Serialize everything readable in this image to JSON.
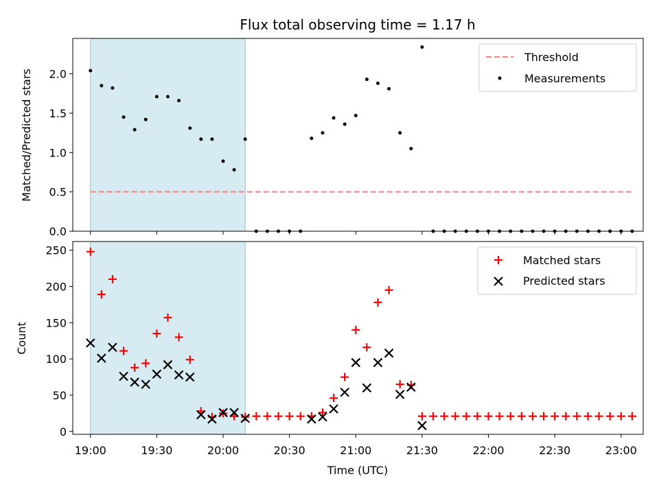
{
  "figure": {
    "title": "Flux total observing time = 1.17 h",
    "xlabel": "Time (UTC)",
    "xticks": [
      "19:00",
      "19:30",
      "20:00",
      "20:30",
      "21:00",
      "21:30",
      "22:00",
      "22:30",
      "23:00"
    ]
  },
  "chart_data": [
    {
      "type": "scatter",
      "ylabel": "Matched/Predicted stars",
      "xlim": [
        "18:52",
        "23:10"
      ],
      "ylim": [
        0,
        2.45
      ],
      "yticks": [
        "0.0",
        "0.5",
        "1.0",
        "1.5",
        "2.0"
      ],
      "shaded_span": [
        "19:00",
        "20:10"
      ],
      "threshold": {
        "name": "Threshold",
        "y": 0.5,
        "x_range": [
          "19:00",
          "23:05"
        ],
        "color": "#ff7f7f"
      },
      "series": [
        {
          "name": "Measurements",
          "color": "#000000",
          "x": [
            "19:00",
            "19:05",
            "19:10",
            "19:15",
            "19:20",
            "19:25",
            "19:30",
            "19:35",
            "19:40",
            "19:45",
            "19:50",
            "19:55",
            "20:00",
            "20:05",
            "20:10",
            "20:15",
            "20:20",
            "20:25",
            "20:30",
            "20:35",
            "20:40",
            "20:45",
            "20:50",
            "20:55",
            "21:00",
            "21:05",
            "21:10",
            "21:15",
            "21:20",
            "21:25",
            "21:30",
            "21:35",
            "21:40",
            "21:45",
            "21:50",
            "21:55",
            "22:00",
            "22:05",
            "22:10",
            "22:15",
            "22:20",
            "22:25",
            "22:30",
            "22:35",
            "22:40",
            "22:45",
            "22:50",
            "22:55",
            "23:00",
            "23:05"
          ],
          "y": [
            2.04,
            1.85,
            1.82,
            1.45,
            1.29,
            1.42,
            1.71,
            1.71,
            1.66,
            1.31,
            1.17,
            1.17,
            0.89,
            0.78,
            1.17,
            0,
            0,
            0,
            0,
            0,
            1.18,
            1.25,
            1.44,
            1.36,
            1.47,
            1.93,
            1.88,
            1.81,
            1.25,
            1.05,
            2.34,
            0,
            0,
            0,
            0,
            0,
            0,
            0,
            0,
            0,
            0,
            0,
            0,
            0,
            0,
            0,
            0,
            0,
            0,
            0
          ]
        }
      ]
    },
    {
      "type": "scatter",
      "ylabel": "Count",
      "xlim": [
        "18:52",
        "23:10"
      ],
      "ylim": [
        -4,
        262
      ],
      "yticks": [
        "0",
        "50",
        "100",
        "150",
        "200",
        "250"
      ],
      "shaded_span": [
        "19:00",
        "20:10"
      ],
      "series": [
        {
          "name": "Matched stars",
          "color": "#ff0000",
          "marker": "+",
          "x": [
            "19:00",
            "19:05",
            "19:10",
            "19:15",
            "19:20",
            "19:25",
            "19:30",
            "19:35",
            "19:40",
            "19:45",
            "19:50",
            "19:55",
            "20:00",
            "20:05",
            "20:10",
            "20:15",
            "20:20",
            "20:25",
            "20:30",
            "20:35",
            "20:40",
            "20:45",
            "20:50",
            "20:55",
            "21:00",
            "21:05",
            "21:10",
            "21:15",
            "21:20",
            "21:25",
            "21:30",
            "21:35",
            "21:40",
            "21:45",
            "21:50",
            "21:55",
            "22:00",
            "22:05",
            "22:10",
            "22:15",
            "22:20",
            "22:25",
            "22:30",
            "22:35",
            "22:40",
            "22:45",
            "22:50",
            "22:55",
            "23:00",
            "23:05"
          ],
          "y": [
            248,
            189,
            210,
            111,
            88,
            94,
            135,
            157,
            130,
            99,
            28,
            20,
            25,
            21,
            20,
            21,
            21,
            21,
            21,
            21,
            21,
            26,
            46,
            75,
            140,
            116,
            178,
            195,
            65,
            64,
            21,
            21,
            21,
            21,
            21,
            21,
            21,
            21,
            21,
            21,
            21,
            21,
            21,
            21,
            21,
            21,
            21,
            21,
            21,
            21
          ]
        },
        {
          "name": "Predicted stars",
          "color": "#000000",
          "marker": "x",
          "x": [
            "19:00",
            "19:05",
            "19:10",
            "19:15",
            "19:20",
            "19:25",
            "19:30",
            "19:35",
            "19:40",
            "19:45",
            "19:50",
            "19:55",
            "20:00",
            "20:05",
            "20:10",
            "20:40",
            "20:45",
            "20:50",
            "20:55",
            "21:00",
            "21:05",
            "21:10",
            "21:15",
            "21:20",
            "21:25",
            "21:30"
          ],
          "y": [
            122,
            101,
            116,
            76,
            68,
            65,
            79,
            92,
            78,
            75,
            23,
            17,
            26,
            26,
            18,
            17,
            20,
            31,
            54,
            95,
            60,
            95,
            108,
            51,
            61,
            8
          ]
        }
      ]
    }
  ]
}
